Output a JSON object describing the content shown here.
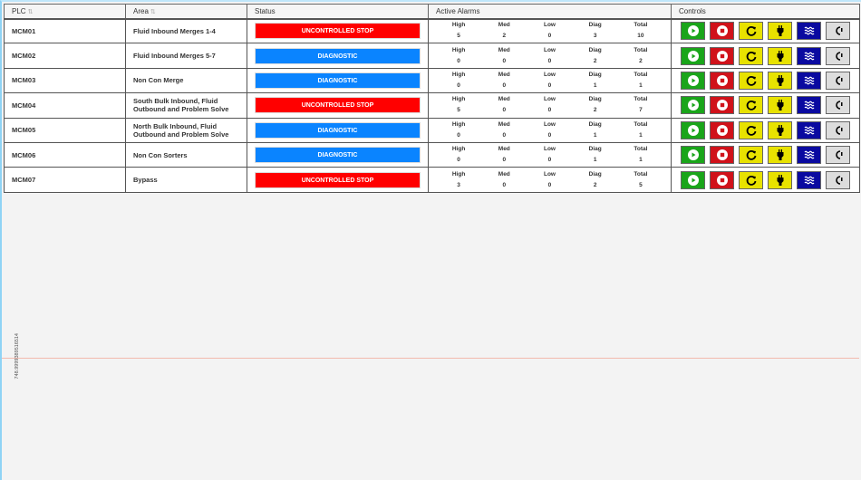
{
  "headers": {
    "plc": "PLC",
    "area": "Area",
    "status": "Status",
    "alarms": "Active Alarms",
    "controls": "Controls"
  },
  "alarm_labels": [
    "High",
    "Med",
    "Low",
    "Diag",
    "Total"
  ],
  "colors": {
    "uncontrolled": "#ff0000",
    "diagnostic": "#0a84ff",
    "start": "#1aa51a",
    "stop": "#d0121a",
    "reset": "#e8e200",
    "power": "#e8e200",
    "wave": "#0a0aa0",
    "other": "#dddddd"
  },
  "rows": [
    {
      "plc": "MCM01",
      "area": "Fluid Inbound Merges 1-4",
      "status": "UNCONTROLLED STOP",
      "kind": "uncontrolled",
      "alarms": [
        5,
        2,
        0,
        3,
        10
      ]
    },
    {
      "plc": "MCM02",
      "area": "Fluid Inbound Merges 5-7",
      "status": "DIAGNOSTIC",
      "kind": "diagnostic",
      "alarms": [
        0,
        0,
        0,
        2,
        2
      ]
    },
    {
      "plc": "MCM03",
      "area": "Non Con Merge",
      "status": "DIAGNOSTIC",
      "kind": "diagnostic",
      "alarms": [
        0,
        0,
        0,
        1,
        1
      ]
    },
    {
      "plc": "MCM04",
      "area": "South Bulk Inbound, Fluid Outbound and Problem Solve",
      "status": "UNCONTROLLED STOP",
      "kind": "uncontrolled",
      "alarms": [
        5,
        0,
        0,
        2,
        7
      ]
    },
    {
      "plc": "MCM05",
      "area": "North Bulk Inbound, Fluid Outbound and Problem Solve",
      "status": "DIAGNOSTIC",
      "kind": "diagnostic",
      "alarms": [
        0,
        0,
        0,
        1,
        1
      ]
    },
    {
      "plc": "MCM06",
      "area": "Non Con Sorters",
      "status": "DIAGNOSTIC",
      "kind": "diagnostic",
      "alarms": [
        0,
        0,
        0,
        1,
        1
      ]
    },
    {
      "plc": "MCM07",
      "area": "Bypass",
      "status": "UNCONTROLLED STOP",
      "kind": "uncontrolled",
      "alarms": [
        3,
        0,
        0,
        2,
        5
      ]
    }
  ],
  "side_value": "748.9999389516514"
}
